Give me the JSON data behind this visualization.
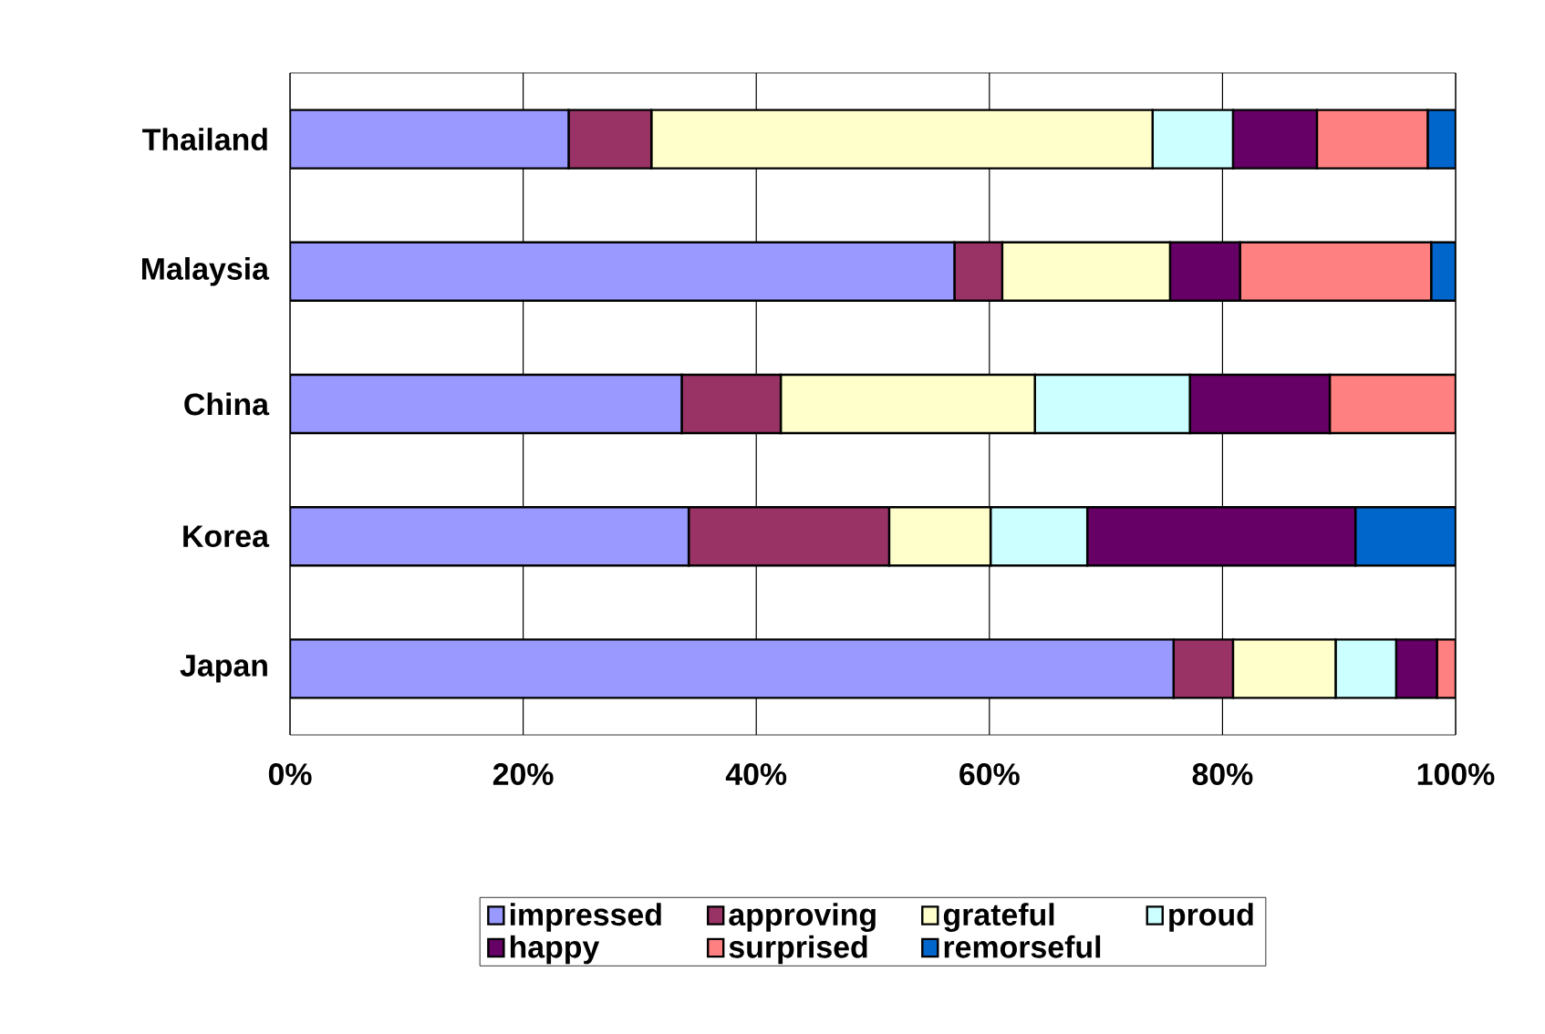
{
  "chart_data": {
    "type": "bar",
    "orientation": "horizontal",
    "stacked": true,
    "categories": [
      "Thailand",
      "Malaysia",
      "China",
      "Korea",
      "Japan"
    ],
    "series": [
      {
        "name": "impressed",
        "color": "#9999ff",
        "values": [
          23.9,
          57.0,
          33.6,
          34.2,
          75.8
        ]
      },
      {
        "name": "approving",
        "color": "#993366",
        "values": [
          7.1,
          4.1,
          8.5,
          17.2,
          5.1
        ]
      },
      {
        "name": "grateful",
        "color": "#ffffcc",
        "values": [
          43.0,
          14.4,
          21.8,
          8.7,
          8.8
        ]
      },
      {
        "name": "proud",
        "color": "#ccffff",
        "values": [
          6.9,
          0,
          13.3,
          8.3,
          5.2
        ]
      },
      {
        "name": "happy",
        "color": "#660066",
        "values": [
          7.2,
          6.0,
          12.0,
          23.0,
          3.5
        ]
      },
      {
        "name": "surprised",
        "color": "#ff8080",
        "values": [
          9.5,
          16.4,
          10.8,
          0,
          1.6
        ]
      },
      {
        "name": "remorseful",
        "color": "#0066cc",
        "values": [
          2.4,
          2.1,
          0,
          8.6,
          0
        ]
      }
    ],
    "xlim": [
      0,
      100
    ],
    "xticks": [
      {
        "value": 0,
        "label": "0%"
      },
      {
        "value": 20,
        "label": "20%"
      },
      {
        "value": 40,
        "label": "40%"
      },
      {
        "value": 60,
        "label": "60%"
      },
      {
        "value": 80,
        "label": "80%"
      },
      {
        "value": 100,
        "label": "100%"
      }
    ],
    "grid": "x",
    "legend": "bottom"
  }
}
